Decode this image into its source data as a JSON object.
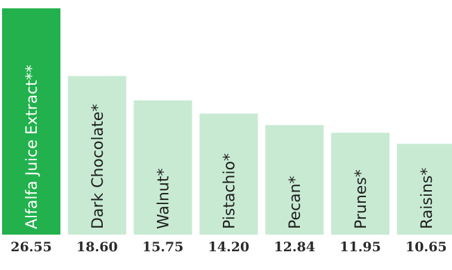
{
  "chart_data": {
    "type": "bar",
    "categories": [
      "Alfalfa Juice Extract**",
      "Dark Chocolate*",
      "Walnut*",
      "Pistachio*",
      "Pecan*",
      "Prunes*",
      "Raisins*"
    ],
    "values": [
      26.55,
      18.6,
      15.75,
      14.2,
      12.84,
      11.95,
      10.65
    ],
    "value_labels": [
      "26.55",
      "18.60",
      "15.75",
      "14.20",
      "12.84",
      "11.95",
      "10.65"
    ],
    "highlight_index": 0,
    "ylim": [
      0,
      26.55
    ],
    "title": "",
    "xlabel": "",
    "ylabel": "",
    "grid": false,
    "orientation": "vertical",
    "label_placement": "inside-bar-rotated",
    "colors": {
      "highlight_bar": "#22b14c",
      "default_bar": "#c8ead3",
      "highlight_text": "#ffffff",
      "default_text": "#1f1f1f",
      "value_text": "#2b2b2b"
    }
  }
}
